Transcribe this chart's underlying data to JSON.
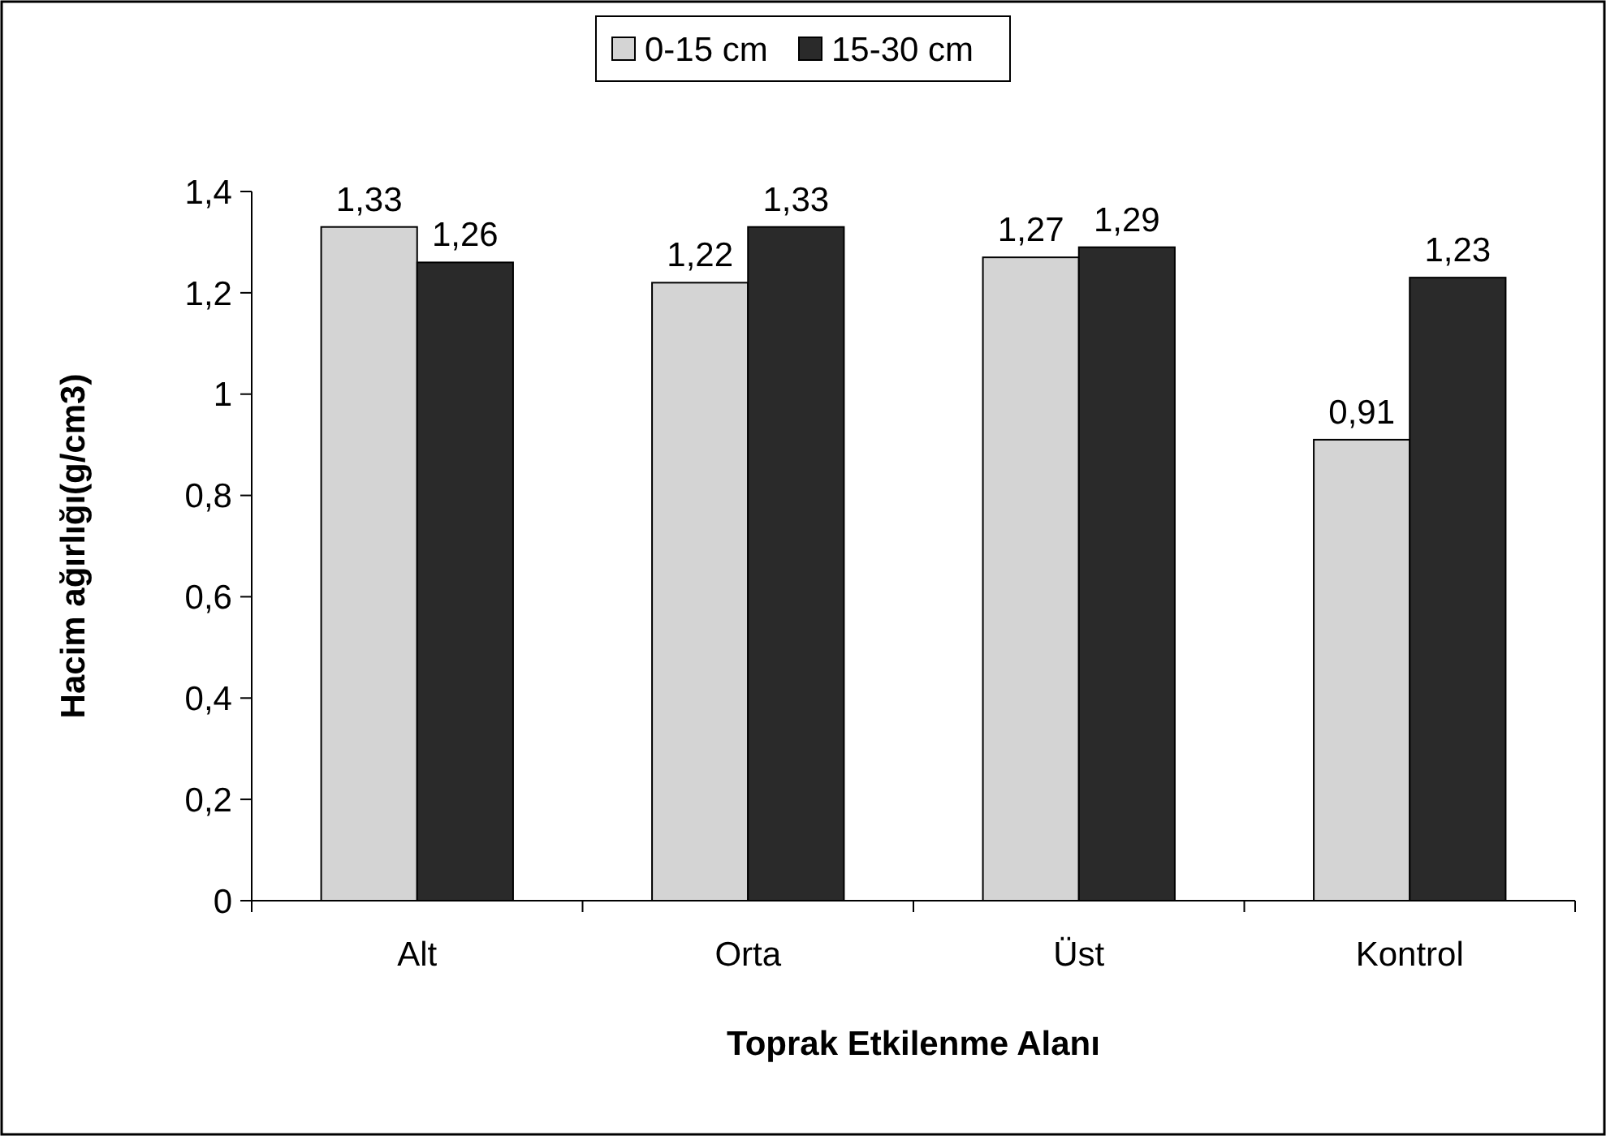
{
  "chart_data": {
    "type": "bar",
    "xlabel": "Toprak Etkilenme Alanı",
    "ylabel": "Hacim ağırlığı(g/cm3)",
    "categories": [
      "Alt",
      "Orta",
      "Üst",
      "Kontrol"
    ],
    "series": [
      {
        "name": "0-15 cm",
        "color": "#d4d4d4",
        "values": [
          1.33,
          1.22,
          1.27,
          0.91
        ],
        "value_labels": [
          "1,33",
          "1,22",
          "1,27",
          "0,91"
        ]
      },
      {
        "name": "15-30 cm",
        "color": "#2a2a2a",
        "values": [
          1.26,
          1.33,
          1.29,
          1.23
        ],
        "value_labels": [
          "1,26",
          "1,33",
          "1,29",
          "1,23"
        ]
      }
    ],
    "ylim": [
      0,
      1.4
    ],
    "yticks": [
      {
        "value": 0,
        "label": "0"
      },
      {
        "value": 0.2,
        "label": "0,2"
      },
      {
        "value": 0.4,
        "label": "0,4"
      },
      {
        "value": 0.6,
        "label": "0,6"
      },
      {
        "value": 0.8,
        "label": "0,8"
      },
      {
        "value": 1,
        "label": "1"
      },
      {
        "value": 1.2,
        "label": "1,2"
      },
      {
        "value": 1.4,
        "label": "1,4"
      }
    ],
    "grid": false,
    "legend": "top"
  }
}
